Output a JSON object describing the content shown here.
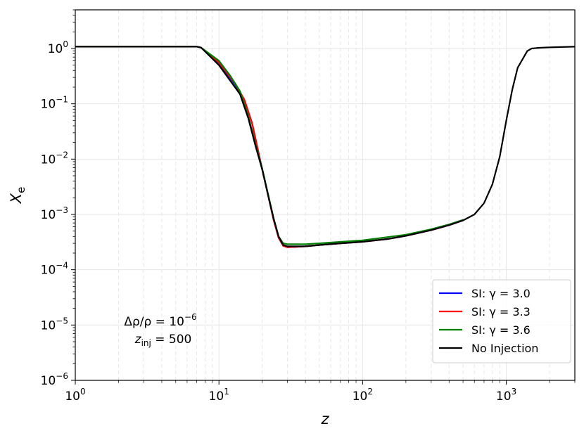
{
  "chart_data": {
    "type": "line",
    "title": "",
    "xlabel": "z",
    "ylabel": "X",
    "ylabel_subscript": "e",
    "xscale": "log",
    "yscale": "log",
    "xlim": [
      1,
      3000
    ],
    "ylim": [
      1e-06,
      5
    ],
    "grid": true,
    "legend_position": "lower right",
    "x_ticks": [
      {
        "value": 1,
        "base": "10",
        "exp": "0"
      },
      {
        "value": 10,
        "base": "10",
        "exp": "1"
      },
      {
        "value": 100,
        "base": "10",
        "exp": "2"
      },
      {
        "value": 1000,
        "base": "10",
        "exp": "3"
      }
    ],
    "y_ticks": [
      {
        "value": 1e-06,
        "base": "10",
        "exp": "−6"
      },
      {
        "value": 1e-05,
        "base": "10",
        "exp": "−5"
      },
      {
        "value": 0.0001,
        "base": "10",
        "exp": "−4"
      },
      {
        "value": 0.001,
        "base": "10",
        "exp": "−3"
      },
      {
        "value": 0.01,
        "base": "10",
        "exp": "−2"
      },
      {
        "value": 0.1,
        "base": "10",
        "exp": "−1"
      },
      {
        "value": 1,
        "base": "10",
        "exp": "0"
      }
    ],
    "annotation": {
      "line1_prefix": "Δρ/ρ = 10",
      "line1_exp": "−6",
      "line2_var": "z",
      "line2_sub": "inj",
      "line2_rest": " = 500"
    },
    "series": [
      {
        "name": "SI: γ = 3.0",
        "color": "#0000ff",
        "x": [
          1,
          7,
          7.5,
          10,
          13,
          15,
          17,
          19,
          20,
          22,
          24,
          26,
          28,
          30,
          35,
          40,
          50,
          70,
          100,
          150,
          200,
          300,
          400,
          500
        ],
        "y": [
          1.08,
          1.08,
          1.04,
          0.55,
          0.22,
          0.12,
          0.045,
          0.012,
          0.0065,
          0.0022,
          0.0008,
          0.00038,
          0.00027,
          0.000255,
          0.00026,
          0.000265,
          0.00028,
          0.0003,
          0.00032,
          0.00036,
          0.00041,
          0.00052,
          0.00064,
          0.00078
        ]
      },
      {
        "name": "SI: γ = 3.3",
        "color": "#ff0000",
        "x": [
          1,
          7,
          7.5,
          10,
          13,
          15,
          17,
          19,
          20,
          22,
          24,
          26,
          28,
          30,
          35,
          40,
          50,
          70,
          100,
          150,
          200,
          300,
          400,
          500
        ],
        "y": [
          1.08,
          1.08,
          1.04,
          0.56,
          0.23,
          0.12,
          0.045,
          0.012,
          0.0065,
          0.0022,
          0.0008,
          0.00038,
          0.00027,
          0.000255,
          0.00026,
          0.000265,
          0.00028,
          0.0003,
          0.00032,
          0.00036,
          0.00041,
          0.00052,
          0.00064,
          0.00078
        ]
      },
      {
        "name": "SI: γ = 3.6",
        "color": "#008000",
        "x": [
          1,
          7,
          7.5,
          10,
          12,
          14,
          16,
          18,
          20,
          22,
          24,
          26,
          28,
          30,
          35,
          40,
          50,
          70,
          100,
          150,
          200,
          300,
          400,
          500
        ],
        "y": [
          1.08,
          1.08,
          1.04,
          0.6,
          0.32,
          0.17,
          0.06,
          0.018,
          0.0068,
          0.0023,
          0.00085,
          0.0004,
          0.0003,
          0.00029,
          0.00029,
          0.00029,
          0.0003,
          0.00032,
          0.00034,
          0.00039,
          0.00043,
          0.00054,
          0.00066,
          0.0008
        ]
      },
      {
        "name": "No Injection",
        "color": "#000000",
        "x": [
          1,
          7,
          7.5,
          10,
          12,
          14,
          16,
          18,
          20,
          22,
          24,
          26,
          28,
          30,
          35,
          40,
          50,
          70,
          100,
          150,
          200,
          300,
          400,
          500,
          600,
          700,
          800,
          900,
          1000,
          1100,
          1200,
          1400,
          1500,
          1700,
          2000,
          3000
        ],
        "y": [
          1.08,
          1.08,
          1.04,
          0.5,
          0.26,
          0.15,
          0.055,
          0.017,
          0.0065,
          0.0022,
          0.00085,
          0.0004,
          0.00028,
          0.000265,
          0.000265,
          0.000265,
          0.00028,
          0.0003,
          0.00032,
          0.00036,
          0.00041,
          0.00052,
          0.00064,
          0.00078,
          0.001,
          0.0016,
          0.0035,
          0.011,
          0.05,
          0.18,
          0.45,
          0.9,
          1.0,
          1.03,
          1.05,
          1.08
        ]
      }
    ]
  }
}
